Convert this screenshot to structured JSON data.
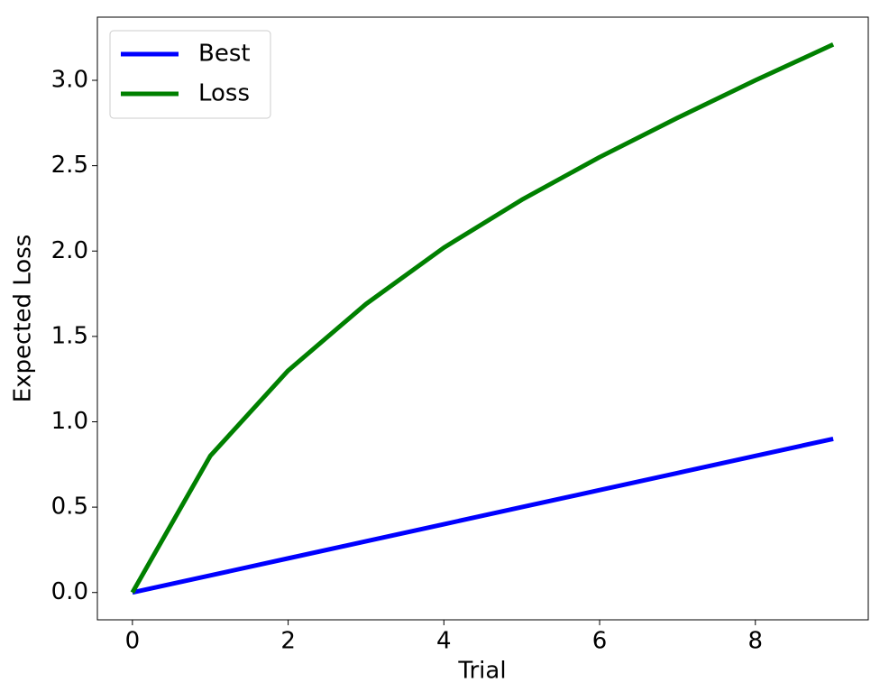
{
  "chart_data": {
    "type": "line",
    "x_label": "Trial",
    "y_label": "Expected Loss",
    "x": [
      0,
      1,
      2,
      3,
      4,
      5,
      6,
      7,
      8,
      9
    ],
    "series": [
      {
        "name": "Best",
        "color": "#0000ff",
        "values": [
          0,
          0.1,
          0.2,
          0.3,
          0.4,
          0.5,
          0.6,
          0.7,
          0.8,
          0.9
        ]
      },
      {
        "name": "Loss",
        "color": "#008000",
        "values": [
          0,
          0.8,
          1.3,
          1.69,
          2.02,
          2.3,
          2.55,
          2.78,
          3.0,
          3.21
        ]
      }
    ],
    "xlim": [
      -0.45,
      9.45
    ],
    "ylim": [
      -0.16,
      3.37
    ],
    "xticks": [
      0,
      2,
      4,
      6,
      8
    ],
    "yticks": [
      {
        "value": 0,
        "label": "0.0"
      },
      {
        "value": 0.5,
        "label": "0.5"
      },
      {
        "value": 1,
        "label": "1.0"
      },
      {
        "value": 1.5,
        "label": "1.5"
      },
      {
        "value": 2,
        "label": "2.0"
      },
      {
        "value": 2.5,
        "label": "2.5"
      },
      {
        "value": 3,
        "label": "3.0"
      }
    ],
    "legend": "upper left",
    "grid": false
  }
}
